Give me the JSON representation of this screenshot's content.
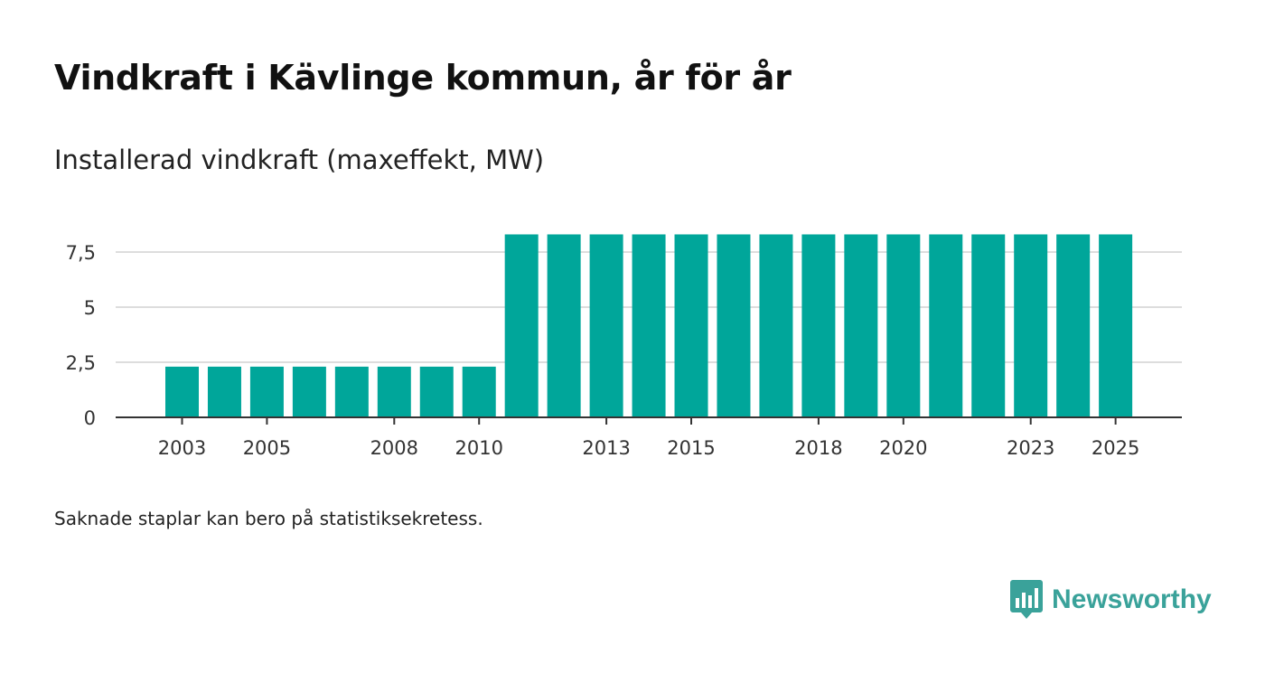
{
  "title": "Vindkraft i Kävlinge kommun, år för år",
  "subtitle": "Installerad vindkraft (maxeffekt, MW)",
  "footnote": "Saknade staplar kan bero på statistiksekretess.",
  "brand": {
    "name": "Newsworthy",
    "color": "#3aa29a",
    "icon": "bar-chart-speech-bubble-icon"
  },
  "colors": {
    "bar": "#00a69a",
    "grid": "#dddddd",
    "axis": "#333333"
  },
  "chart_data": {
    "type": "bar",
    "categories": [
      "2003",
      "2004",
      "2005",
      "2006",
      "2007",
      "2008",
      "2009",
      "2010",
      "2011",
      "2012",
      "2013",
      "2014",
      "2015",
      "2016",
      "2017",
      "2018",
      "2019",
      "2020",
      "2021",
      "2022",
      "2023",
      "2024",
      "2025"
    ],
    "values": [
      2.3,
      2.3,
      2.3,
      2.3,
      2.3,
      2.3,
      2.3,
      2.3,
      8.3,
      8.3,
      8.3,
      8.3,
      8.3,
      8.3,
      8.3,
      8.3,
      8.3,
      8.3,
      8.3,
      8.3,
      8.3,
      8.3,
      8.3
    ],
    "x_tick_labels": [
      "2003",
      "2005",
      "2008",
      "2010",
      "2013",
      "2015",
      "2018",
      "2020",
      "2023",
      "2025"
    ],
    "y_ticks": [
      0,
      2.5,
      5,
      7.5
    ],
    "y_tick_labels": [
      "0",
      "2,5",
      "5",
      "7,5"
    ],
    "ylim": [
      0,
      8.3
    ],
    "title": "Vindkraft i Kävlinge kommun, år för år",
    "ylabel": "Installerad vindkraft (maxeffekt, MW)",
    "xlabel": "",
    "grid": true
  }
}
